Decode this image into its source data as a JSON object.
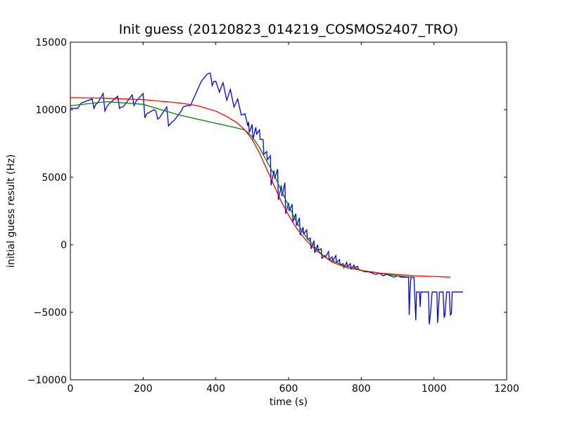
{
  "chart_data": {
    "type": "line",
    "title": "Init guess (20120823_014219_COSMOS2407_TRO)",
    "xlabel": "time (s)",
    "ylabel": "initial guess result (Hz)",
    "xlim": [
      0,
      1200
    ],
    "ylim": [
      -10000,
      15000
    ],
    "x_ticks": [
      0,
      200,
      400,
      600,
      800,
      1000,
      1200
    ],
    "y_ticks": [
      -10000,
      -5000,
      0,
      5000,
      10000,
      15000
    ],
    "grid": false,
    "legend": "none",
    "series": [
      {
        "color": "#0000ff",
        "x": [
          0,
          20,
          25,
          30,
          40,
          60,
          65,
          70,
          75,
          90,
          95,
          100,
          105,
          130,
          135,
          140,
          145,
          170,
          175,
          180,
          200,
          205,
          210,
          230,
          235,
          240,
          245,
          265,
          270,
          280,
          285,
          305,
          310,
          320,
          330,
          345,
          360,
          375,
          380,
          385,
          390,
          395,
          400,
          410,
          415,
          420,
          430,
          440,
          450,
          460,
          470,
          480,
          488,
          490,
          492,
          500,
          502,
          510,
          512,
          520,
          522,
          530,
          532,
          540,
          542,
          550,
          552,
          560,
          562,
          570,
          572,
          580,
          582,
          590,
          592,
          600,
          602,
          610,
          612,
          620,
          622,
          630,
          632,
          640,
          642,
          650,
          652,
          660,
          662,
          670,
          672,
          680,
          682,
          690,
          692,
          700,
          702,
          710,
          712,
          720,
          722,
          730,
          732,
          740,
          742,
          750,
          752,
          760,
          762,
          770,
          772,
          780,
          782,
          790,
          792,
          800,
          810,
          820,
          830,
          840,
          850,
          860,
          870,
          880,
          890,
          900,
          910,
          920,
          930,
          932,
          934,
          936,
          938,
          940,
          945,
          950,
          952,
          954,
          956,
          960,
          962,
          964,
          968,
          970,
          972,
          976,
          980,
          985,
          987,
          990,
          995,
          1000,
          1005,
          1008,
          1010,
          1015,
          1020,
          1025,
          1028,
          1030,
          1035,
          1040,
          1042,
          1045,
          1048,
          1050,
          1060,
          1070,
          1080
        ],
        "y": [
          10100,
          10100,
          10300,
          10500,
          10600,
          10800,
          10100,
          10400,
          10500,
          11200,
          9900,
          10200,
          10400,
          11000,
          10100,
          10200,
          10200,
          11100,
          10300,
          10600,
          11200,
          9400,
          9700,
          10000,
          9900,
          9300,
          9400,
          10200,
          8800,
          9100,
          9200,
          9900,
          10200,
          10300,
          10300,
          11200,
          12100,
          12600,
          12700,
          12700,
          11800,
          12100,
          12100,
          11300,
          11700,
          12000,
          10700,
          11500,
          10200,
          10800,
          9600,
          9700,
          8800,
          9100,
          8300,
          8900,
          7800,
          8700,
          8200,
          8500,
          7800,
          7800,
          6700,
          6900,
          6300,
          6600,
          4400,
          5500,
          4900,
          5600,
          3300,
          4400,
          3600,
          4600,
          2300,
          3100,
          2500,
          3000,
          1700,
          2300,
          1400,
          2000,
          700,
          1300,
          800,
          1100,
          400,
          500,
          -300,
          300,
          -600,
          0,
          -400,
          -300,
          -1000,
          -800,
          -900,
          -500,
          -1100,
          -900,
          -1200,
          -800,
          -1300,
          -1100,
          -1500,
          -1400,
          -1700,
          -1300,
          -1600,
          -1400,
          -1800,
          -1500,
          -1700,
          -1600,
          -1800,
          -1900,
          -2000,
          -2000,
          -2100,
          -2200,
          -2100,
          -2300,
          -2200,
          -2300,
          -2400,
          -2300,
          -2400,
          -2400,
          -2400,
          -5200,
          -3400,
          -2600,
          -2400,
          -2400,
          -2400,
          -5600,
          -3500,
          -3500,
          -3500,
          -3500,
          -4600,
          -3500,
          -3500,
          -3500,
          -3500,
          -3500,
          -3500,
          -3500,
          -5900,
          -5200,
          -3500,
          -3500,
          -3500,
          -3500,
          -5800,
          -3500,
          -3500,
          -3500,
          -5400,
          -5200,
          -3500,
          -3500,
          -3500,
          -5200,
          -5100,
          -3500,
          -3500,
          -3500,
          -3500
        ]
      },
      {
        "color": "#008000",
        "x": [
          0,
          100,
          200,
          300,
          400,
          450,
          480,
          500,
          520,
          540,
          560,
          580,
          600,
          620,
          640,
          660,
          680,
          700,
          720,
          740,
          760,
          780,
          800,
          850,
          900,
          940
        ],
        "y": [
          10300,
          10600,
          10400,
          9600,
          9000,
          8700,
          8500,
          8000,
          7200,
          6200,
          5200,
          4000,
          2900,
          1800,
          900,
          200,
          -400,
          -900,
          -1300,
          -1500,
          -1700,
          -1800,
          -1900,
          -2100,
          -2300,
          -2400
        ]
      },
      {
        "color": "#ff0000",
        "x": [
          0,
          100,
          200,
          300,
          350,
          400,
          430,
          460,
          480,
          500,
          520,
          540,
          560,
          580,
          600,
          620,
          640,
          660,
          680,
          700,
          720,
          740,
          760,
          780,
          800,
          850,
          900,
          950,
          1000,
          1045
        ],
        "y": [
          10900,
          10850,
          10750,
          10500,
          10300,
          9900,
          9500,
          9000,
          8500,
          7800,
          6800,
          5600,
          4400,
          3200,
          2200,
          1300,
          600,
          0,
          -500,
          -900,
          -1200,
          -1400,
          -1600,
          -1700,
          -1900,
          -2100,
          -2200,
          -2300,
          -2350,
          -2400
        ]
      }
    ]
  }
}
